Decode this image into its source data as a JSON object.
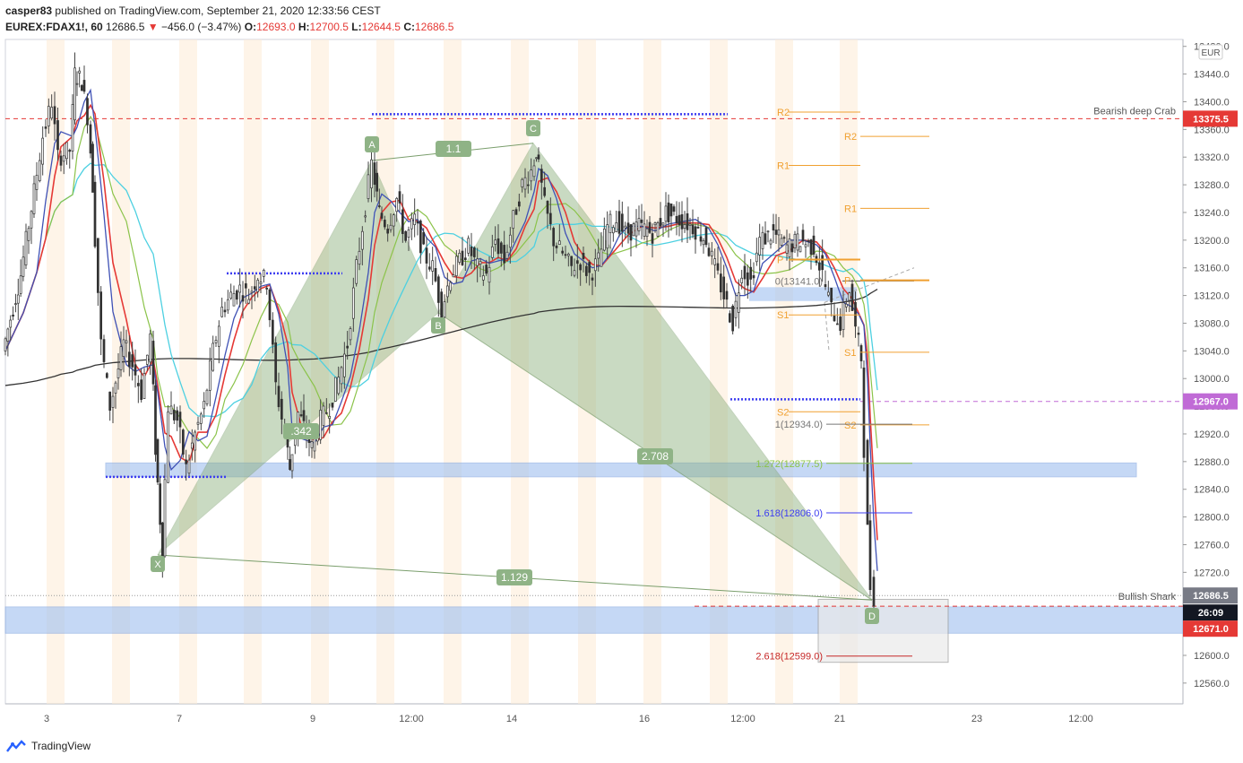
{
  "header": {
    "user": "casper83",
    "published_text": "published on TradingView.com, September 21, 2020 12:33:56 CEST",
    "symbol": "EUREX:FDAX1!, 60",
    "last": "12686.5",
    "down_arrow": "▼",
    "change": "−456.0 (−3.47%)",
    "o_label": "O:",
    "o_value": "12693.0",
    "h_label": "H:",
    "h_value": "12700.5",
    "l_label": "L:",
    "l_value": "12644.5",
    "c_label": "C:",
    "c_value": "12686.5"
  },
  "footer": {
    "brand": "TradingView"
  },
  "colors": {
    "ema_red": "#e53935",
    "ema_blue": "#3f51b5",
    "ma_green": "#8bc34a",
    "ma_cyan": "#4dd0e1",
    "ma_black": "#333333",
    "pattern_fill": "#8aaf7a",
    "zone_blue": "#9fbff0",
    "pivot_orange": "#f0a030",
    "price_red": "#e53935",
    "price_purple": "#c06bd6",
    "price_grey": "#787b86",
    "price_black": "#131722"
  },
  "chart_data": {
    "type": "candlestick",
    "currency": "EUR",
    "ylim": [
      12530,
      13490
    ],
    "y_ticks": [
      "12560.0",
      "12600.0",
      "12640.0",
      "12680.0",
      "12720.0",
      "12760.0",
      "12800.0",
      "12840.0",
      "12880.0",
      "12920.0",
      "12960.0",
      "13000.0",
      "13040.0",
      "13080.0",
      "13120.0",
      "13160.0",
      "13200.0",
      "13240.0",
      "13280.0",
      "13320.0",
      "13360.0",
      "13400.0",
      "13440.0",
      "13480.0"
    ],
    "x_ticks": [
      "3",
      "7",
      "9",
      "12:00",
      "14",
      "16",
      "12:00",
      "21",
      "23",
      "12:00"
    ],
    "price_labels": [
      {
        "text": "13375.5",
        "value": 13375.5,
        "color": "red"
      },
      {
        "text": "12967.0",
        "value": 12967.0,
        "color": "purple"
      },
      {
        "text": "12686.5",
        "value": 12686.5,
        "color": "grey"
      },
      {
        "text": "26:09",
        "value": 12664,
        "color": "black"
      },
      {
        "text": "12671.0",
        "value": 12671.0,
        "color": "red"
      }
    ],
    "pattern_points": [
      {
        "label": "X",
        "price": 12745
      },
      {
        "label": "A",
        "price": 13315
      },
      {
        "label": "B",
        "price": 13095
      },
      {
        "label": "C",
        "price": 13340
      },
      {
        "label": "D",
        "price": 12680
      }
    ],
    "ratio_labels": [
      "1.1",
      "1.129",
      "2.708",
      ".342"
    ],
    "pattern_names": [
      "Bearish deep Crab",
      "Bullish Shark"
    ],
    "fib_levels": [
      {
        "label": "0(13141.0)",
        "value": 13141.0
      },
      {
        "label": "1(12934.0)",
        "value": 12934.0
      },
      {
        "label": "1.272(12877.5)",
        "value": 12877.5
      },
      {
        "label": "1.618(12806.0)",
        "value": 12806.0
      },
      {
        "label": "2.618(12599.0)",
        "value": 12599.0
      }
    ],
    "pivots_left": [
      {
        "label": "R2",
        "value": 13385
      },
      {
        "label": "R1",
        "value": 13308
      },
      {
        "label": "P",
        "value": 13172
      },
      {
        "label": "S1",
        "value": 13092
      },
      {
        "label": "S2",
        "value": 12952
      }
    ],
    "pivots_right": [
      {
        "label": "R2",
        "value": 13350
      },
      {
        "label": "R1",
        "value": 13246
      },
      {
        "label": "P",
        "value": 13142
      },
      {
        "label": "S1",
        "value": 13038
      },
      {
        "label": "S2",
        "value": 12933
      }
    ],
    "zones": [
      {
        "from": 12858,
        "to": 12878
      },
      {
        "from": 12632,
        "to": 12670
      }
    ],
    "price_path": [
      [
        0,
        13040
      ],
      [
        20,
        13150
      ],
      [
        35,
        13270
      ],
      [
        45,
        13350
      ],
      [
        55,
        13400
      ],
      [
        62,
        13320
      ],
      [
        75,
        13330
      ],
      [
        80,
        13440
      ],
      [
        88,
        13430
      ],
      [
        95,
        13380
      ],
      [
        100,
        13280
      ],
      [
        110,
        13050
      ],
      [
        120,
        12960
      ],
      [
        135,
        13050
      ],
      [
        145,
        13020
      ],
      [
        155,
        12980
      ],
      [
        165,
        13060
      ],
      [
        170,
        12900
      ],
      [
        178,
        12745
      ],
      [
        185,
        12960
      ],
      [
        195,
        12940
      ],
      [
        205,
        12870
      ],
      [
        215,
        12920
      ],
      [
        225,
        12960
      ],
      [
        235,
        13040
      ],
      [
        245,
        13100
      ],
      [
        255,
        13120
      ],
      [
        265,
        13130
      ],
      [
        275,
        13120
      ],
      [
        285,
        13150
      ],
      [
        295,
        13140
      ],
      [
        305,
        12990
      ],
      [
        315,
        12920
      ],
      [
        320,
        12870
      ],
      [
        330,
        12950
      ],
      [
        345,
        12900
      ],
      [
        355,
        12940
      ],
      [
        365,
        12960
      ],
      [
        375,
        13000
      ],
      [
        385,
        13050
      ],
      [
        395,
        13160
      ],
      [
        405,
        13250
      ],
      [
        412,
        13310
      ],
      [
        420,
        13240
      ],
      [
        430,
        13220
      ],
      [
        440,
        13260
      ],
      [
        450,
        13200
      ],
      [
        460,
        13230
      ],
      [
        470,
        13180
      ],
      [
        480,
        13160
      ],
      [
        490,
        13100
      ],
      [
        500,
        13150
      ],
      [
        510,
        13170
      ],
      [
        520,
        13190
      ],
      [
        530,
        13160
      ],
      [
        540,
        13150
      ],
      [
        550,
        13200
      ],
      [
        560,
        13170
      ],
      [
        570,
        13230
      ],
      [
        580,
        13280
      ],
      [
        590,
        13300
      ],
      [
        595,
        13330
      ],
      [
        605,
        13250
      ],
      [
        615,
        13200
      ],
      [
        625,
        13180
      ],
      [
        635,
        13160
      ],
      [
        645,
        13170
      ],
      [
        655,
        13150
      ],
      [
        665,
        13170
      ],
      [
        675,
        13220
      ],
      [
        685,
        13230
      ],
      [
        695,
        13210
      ],
      [
        710,
        13220
      ],
      [
        725,
        13210
      ],
      [
        740,
        13240
      ],
      [
        755,
        13230
      ],
      [
        770,
        13220
      ],
      [
        785,
        13200
      ],
      [
        795,
        13160
      ],
      [
        805,
        13120
      ],
      [
        815,
        13080
      ],
      [
        825,
        13160
      ],
      [
        835,
        13140
      ],
      [
        845,
        13200
      ],
      [
        860,
        13210
      ],
      [
        875,
        13190
      ],
      [
        890,
        13200
      ],
      [
        905,
        13190
      ],
      [
        915,
        13150
      ],
      [
        925,
        13100
      ],
      [
        935,
        13080
      ],
      [
        945,
        13130
      ],
      [
        952,
        13070
      ],
      [
        958,
        13030
      ],
      [
        962,
        12900
      ],
      [
        965,
        12780
      ],
      [
        969,
        12700
      ],
      [
        973,
        12686
      ]
    ]
  }
}
